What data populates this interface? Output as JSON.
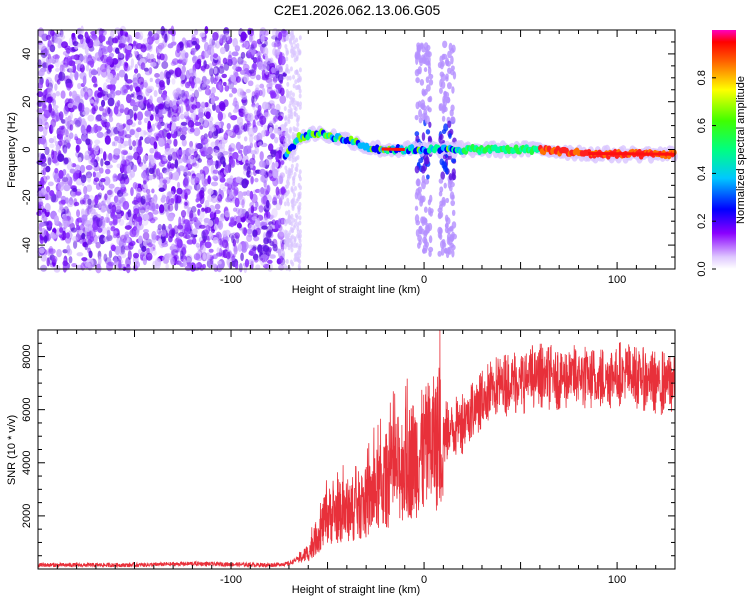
{
  "title": "C2E1.2026.062.13.06.G05",
  "chart_data": [
    {
      "type": "heatmap",
      "xlabel": "Height of straight line (km)",
      "ylabel": "Frequency (Hz)",
      "xlim": [
        -200,
        130
      ],
      "ylim": [
        -50,
        50
      ],
      "xticks": [
        -100,
        0,
        100
      ],
      "xticklabels": [
        "-100",
        "0",
        "100"
      ],
      "yticks": [
        -40,
        -20,
        0,
        20,
        40
      ],
      "yticklabels": [
        "-40",
        "-20",
        "0",
        "20",
        "40"
      ],
      "colorbar": {
        "label": "Normalized spectral amplitude",
        "range": [
          0,
          1
        ],
        "ticks": [
          0.0,
          0.2,
          0.4,
          0.6,
          0.8
        ],
        "ticklabels": [
          "0.0",
          "0.2",
          "0.4",
          "0.6",
          "0.8"
        ],
        "colormap": "rainbow (magenta to red)"
      },
      "features": [
        {
          "name": "noise_region",
          "x_range": [
            -200,
            -72
          ],
          "freq_range": [
            -50,
            50
          ],
          "amplitude": 0.1
        },
        {
          "name": "signal_track",
          "points": [
            [
              -72,
              -3
            ],
            [
              -65,
              5
            ],
            [
              -55,
              7
            ],
            [
              -45,
              5
            ],
            [
              -35,
              3
            ],
            [
              -30,
              1
            ],
            [
              -20,
              0
            ],
            [
              -10,
              0
            ],
            [
              0,
              0
            ],
            [
              20,
              0
            ],
            [
              60,
              0
            ],
            [
              90,
              -2
            ],
            [
              130,
              -2
            ]
          ],
          "amplitude_end": 0.95
        },
        {
          "name": "vertical_burst",
          "x": 0,
          "freq_range": [
            -45,
            45
          ]
        },
        {
          "name": "vertical_burst",
          "x": 12,
          "freq_range": [
            -45,
            45
          ]
        }
      ],
      "grid": false
    },
    {
      "type": "line",
      "xlabel": "Height of straight line (km)",
      "ylabel": "SNR (10 * v/v)",
      "xlim": [
        -200,
        130
      ],
      "ylim": [
        0,
        9000
      ],
      "xticks": [
        -100,
        0,
        100
      ],
      "xticklabels": [
        "-100",
        "0",
        "100"
      ],
      "yticks": [
        2000,
        4000,
        6000,
        8000
      ],
      "yticklabels": [
        "2000",
        "4000",
        "6000",
        "8000"
      ],
      "color": "#e8303a",
      "series_envelope": {
        "x": [
          -200,
          -150,
          -120,
          -80,
          -70,
          -60,
          -50,
          -40,
          -30,
          -20,
          -10,
          0,
          10,
          20,
          30,
          40,
          50,
          60,
          70,
          80,
          90,
          100,
          110,
          120,
          130
        ],
        "y": [
          150,
          150,
          200,
          150,
          200,
          600,
          2000,
          2200,
          2500,
          3300,
          4000,
          4400,
          5000,
          5600,
          6400,
          7000,
          7100,
          7300,
          7200,
          7300,
          7100,
          7400,
          7300,
          7000,
          7100
        ]
      },
      "grid": false
    }
  ]
}
